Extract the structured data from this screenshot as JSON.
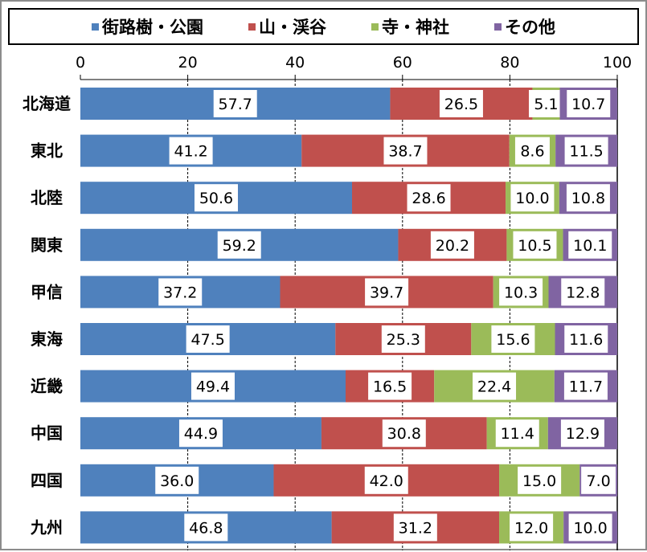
{
  "chart_data": {
    "type": "bar",
    "orientation": "horizontal",
    "stacked": true,
    "title": "",
    "xlabel": "",
    "ylabel": "",
    "xlim": [
      0,
      100
    ],
    "xticks": [
      0,
      20,
      40,
      60,
      80,
      100
    ],
    "grid": true,
    "legend_position": "top",
    "categories": [
      "北海道",
      "東北",
      "北陸",
      "関東",
      "甲信",
      "東海",
      "近畿",
      "中国",
      "四国",
      "九州"
    ],
    "series": [
      {
        "name": "街路樹・公園",
        "color": "#4f81bd",
        "values": [
          57.7,
          41.2,
          50.6,
          59.2,
          37.2,
          47.5,
          49.4,
          44.9,
          36.0,
          46.8
        ]
      },
      {
        "name": "山・渓谷",
        "color": "#c0504d",
        "values": [
          26.5,
          38.7,
          28.6,
          20.2,
          39.7,
          25.3,
          16.5,
          30.8,
          42.0,
          31.2
        ]
      },
      {
        "name": "寺・神社",
        "color": "#9bbb59",
        "values": [
          5.1,
          8.6,
          10.0,
          10.5,
          10.3,
          15.6,
          22.4,
          11.4,
          15.0,
          12.0
        ]
      },
      {
        "name": "その他",
        "color": "#8064a2",
        "values": [
          10.7,
          11.5,
          10.8,
          10.1,
          12.8,
          11.6,
          11.7,
          12.9,
          7.0,
          10.0
        ]
      }
    ]
  }
}
